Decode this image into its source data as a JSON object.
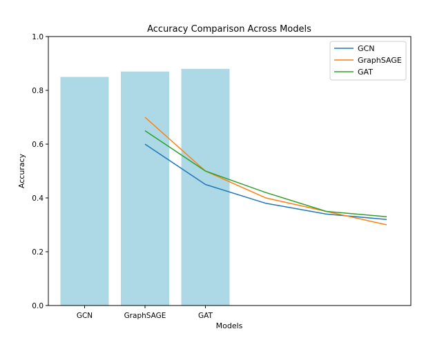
{
  "chart_data": {
    "type": "bar",
    "title": "Accuracy Comparison Across Models",
    "xlabel": "Models",
    "ylabel": "Accuracy",
    "ylim": [
      0,
      1.0
    ],
    "yticks": [
      "0.0",
      "0.2",
      "0.4",
      "0.6",
      "0.8",
      "1.0"
    ],
    "grid": false,
    "legend_position": "top-right",
    "bars": {
      "categories": [
        "GCN",
        "GraphSAGE",
        "GAT"
      ],
      "values": [
        0.85,
        0.87,
        0.88
      ],
      "color": "#add8e6"
    },
    "line_x": [
      1,
      2,
      3,
      4,
      5
    ],
    "series": [
      {
        "name": "GCN",
        "color": "#1f77b4",
        "values": [
          0.6,
          0.45,
          0.38,
          0.34,
          0.32
        ]
      },
      {
        "name": "GraphSAGE",
        "color": "#ff7f0e",
        "values": [
          0.7,
          0.5,
          0.4,
          0.35,
          0.3
        ]
      },
      {
        "name": "GAT",
        "color": "#2ca02c",
        "values": [
          0.65,
          0.5,
          0.42,
          0.35,
          0.33
        ]
      }
    ]
  }
}
